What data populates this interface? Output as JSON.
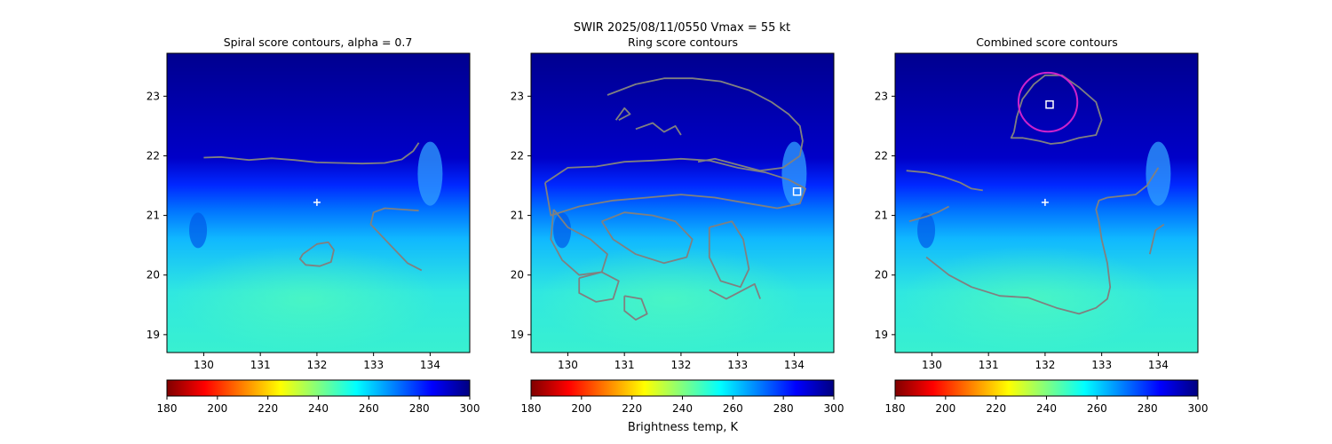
{
  "suptitle": "SWIR  2025/08/11/0550    Vmax = 55 kt",
  "colorbar_label": "Brightness temp, K",
  "colormap": {
    "name": "jet_r",
    "stops": [
      "#800000",
      "#ff0000",
      "#ff8000",
      "#ffff00",
      "#80ff80",
      "#00ffff",
      "#0080ff",
      "#0000ff",
      "#000080"
    ]
  },
  "colors": {
    "contour": "#808080",
    "center_marker": "#ffffff",
    "ring_circle": "#cc22cc"
  },
  "chart_data": [
    {
      "type": "heatmap",
      "title": "Spiral score contours, alpha =  0.7",
      "xlim": [
        129.35,
        134.7
      ],
      "ylim": [
        18.7,
        23.72
      ],
      "xticks": [
        "130",
        "131",
        "132",
        "133",
        "134"
      ],
      "yticks": [
        "19",
        "20",
        "21",
        "22",
        "23"
      ],
      "colorbar": {
        "range": [
          180,
          300
        ],
        "ticks": [
          "180",
          "200",
          "220",
          "240",
          "260",
          "280",
          "300"
        ]
      },
      "markers": [
        {
          "type": "plus",
          "x": 132.0,
          "y": 21.22
        }
      ],
      "contours": [
        {
          "x": [
            130.0,
            130.3,
            130.8,
            131.2,
            131.6,
            132.0,
            132.4,
            132.8,
            133.2,
            133.5,
            133.7,
            133.8
          ],
          "y": [
            21.97,
            21.98,
            21.93,
            21.96,
            21.93,
            21.89,
            21.88,
            21.87,
            21.88,
            21.94,
            22.08,
            22.22
          ]
        },
        {
          "x": [
            133.8,
            133.5,
            133.2,
            133.0,
            132.95,
            133.1,
            133.3,
            133.6,
            133.85
          ],
          "y": [
            21.08,
            21.1,
            21.12,
            21.05,
            20.85,
            20.7,
            20.5,
            20.2,
            20.08
          ]
        },
        {
          "x": [
            131.75,
            132.0,
            132.2,
            132.3,
            132.25,
            132.05,
            131.8,
            131.7,
            131.75
          ],
          "y": [
            20.35,
            20.52,
            20.55,
            20.42,
            20.22,
            20.15,
            20.17,
            20.27,
            20.35
          ]
        }
      ]
    },
    {
      "type": "heatmap",
      "title": "Ring score contours",
      "xlim": [
        129.35,
        134.7
      ],
      "ylim": [
        18.7,
        23.72
      ],
      "xticks": [
        "130",
        "131",
        "132",
        "133",
        "134"
      ],
      "yticks": [
        "19",
        "20",
        "21",
        "22",
        "23"
      ],
      "colorbar": {
        "range": [
          180,
          300
        ],
        "ticks": [
          "180",
          "200",
          "220",
          "240",
          "260",
          "280",
          "300"
        ]
      },
      "markers": [
        {
          "type": "square",
          "x": 134.05,
          "y": 21.4
        }
      ],
      "contours": [
        {
          "x": [
            129.6,
            130.0,
            130.5,
            131.0,
            131.5,
            132.0,
            132.5,
            133.0,
            133.5,
            133.9,
            134.2,
            134.1,
            133.7,
            133.2,
            132.6,
            132.0,
            131.4,
            130.8,
            130.2,
            129.7,
            129.6
          ],
          "y": [
            21.55,
            21.8,
            21.82,
            21.9,
            21.92,
            21.95,
            21.92,
            21.8,
            21.72,
            21.6,
            21.45,
            21.2,
            21.12,
            21.2,
            21.3,
            21.35,
            21.3,
            21.25,
            21.15,
            21.0,
            21.55
          ]
        },
        {
          "x": [
            130.7,
            131.2,
            131.7,
            132.2,
            132.7,
            133.2,
            133.6,
            133.9,
            134.1,
            134.15,
            134.1,
            133.8,
            133.4,
            133.0,
            132.6,
            132.3
          ],
          "y": [
            23.02,
            23.2,
            23.3,
            23.3,
            23.25,
            23.1,
            22.9,
            22.7,
            22.5,
            22.25,
            22.0,
            21.8,
            21.75,
            21.85,
            21.95,
            21.9
          ]
        },
        {
          "x": [
            129.75,
            130.0,
            130.4,
            130.7,
            130.6,
            130.2,
            129.9,
            129.7,
            129.75
          ],
          "y": [
            21.1,
            20.8,
            20.6,
            20.35,
            20.05,
            20.0,
            20.25,
            20.6,
            21.1
          ]
        },
        {
          "x": [
            130.6,
            131.0,
            131.5,
            131.9,
            132.2,
            132.1,
            131.7,
            131.2,
            130.8,
            130.6
          ],
          "y": [
            20.9,
            21.05,
            21.0,
            20.9,
            20.6,
            20.3,
            20.2,
            20.35,
            20.6,
            20.9
          ]
        },
        {
          "x": [
            132.5,
            132.9,
            133.1,
            133.2,
            133.05,
            132.7,
            132.5,
            132.5
          ],
          "y": [
            20.8,
            20.9,
            20.6,
            20.1,
            19.8,
            19.9,
            20.3,
            20.8
          ]
        },
        {
          "x": [
            130.2,
            130.6,
            130.9,
            130.8,
            130.5,
            130.2,
            130.2
          ],
          "y": [
            19.95,
            20.05,
            19.9,
            19.6,
            19.55,
            19.7,
            19.95
          ]
        },
        {
          "x": [
            131.0,
            131.3,
            131.4,
            131.2,
            131.0,
            131.0
          ],
          "y": [
            19.65,
            19.6,
            19.35,
            19.25,
            19.4,
            19.65
          ]
        },
        {
          "x": [
            132.5,
            132.8,
            133.0,
            133.3,
            133.4
          ],
          "y": [
            19.75,
            19.6,
            19.7,
            19.85,
            19.6
          ]
        },
        {
          "x": [
            131.2,
            131.5,
            131.7,
            131.9,
            132.0
          ],
          "y": [
            22.45,
            22.55,
            22.4,
            22.5,
            22.35
          ]
        },
        {
          "x": [
            130.9,
            131.1,
            131.0,
            130.85
          ],
          "y": [
            22.6,
            22.7,
            22.8,
            22.6
          ]
        }
      ]
    },
    {
      "type": "heatmap",
      "title": "Combined score contours",
      "xlim": [
        129.35,
        134.7
      ],
      "ylim": [
        18.7,
        23.72
      ],
      "xticks": [
        "130",
        "131",
        "132",
        "133",
        "134"
      ],
      "yticks": [
        "19",
        "20",
        "21",
        "22",
        "23"
      ],
      "colorbar": {
        "range": [
          180,
          300
        ],
        "ticks": [
          "180",
          "200",
          "220",
          "240",
          "260",
          "280",
          "300"
        ]
      },
      "markers": [
        {
          "type": "plus",
          "x": 132.0,
          "y": 21.22
        },
        {
          "type": "square",
          "x": 132.08,
          "y": 22.86
        }
      ],
      "circles": [
        {
          "x": 132.05,
          "y": 22.9,
          "r": 0.52
        }
      ],
      "contours": [
        {
          "x": [
            131.45,
            131.5,
            131.6,
            131.8,
            132.0,
            132.3,
            132.6,
            132.9,
            133.0,
            132.9,
            132.6,
            132.3,
            132.1,
            131.9,
            131.6,
            131.4,
            131.45
          ],
          "y": [
            22.4,
            22.65,
            22.95,
            23.2,
            23.35,
            23.35,
            23.15,
            22.9,
            22.6,
            22.35,
            22.3,
            22.22,
            22.2,
            22.25,
            22.3,
            22.3,
            22.4
          ]
        },
        {
          "x": [
            129.55,
            129.9,
            130.2,
            130.5,
            130.7,
            130.9
          ],
          "y": [
            21.75,
            21.72,
            21.65,
            21.55,
            21.45,
            21.42
          ]
        },
        {
          "x": [
            129.6,
            129.9,
            130.1,
            130.3
          ],
          "y": [
            20.9,
            20.98,
            21.05,
            21.15
          ]
        },
        {
          "x": [
            129.9,
            130.3,
            130.7,
            131.2,
            131.7,
            132.2,
            132.6,
            132.9,
            133.1,
            133.15,
            133.1,
            133.0,
            132.95,
            132.9,
            132.95,
            133.1
          ],
          "y": [
            20.3,
            20.0,
            19.8,
            19.65,
            19.62,
            19.45,
            19.35,
            19.45,
            19.6,
            19.8,
            20.2,
            20.6,
            20.9,
            21.1,
            21.25,
            21.3
          ]
        },
        {
          "x": [
            133.1,
            133.3,
            133.6,
            133.8,
            134.0
          ],
          "y": [
            21.3,
            21.32,
            21.35,
            21.5,
            21.8
          ]
        },
        {
          "x": [
            133.85,
            133.95,
            134.1
          ],
          "y": [
            20.35,
            20.75,
            20.85
          ]
        }
      ]
    }
  ]
}
